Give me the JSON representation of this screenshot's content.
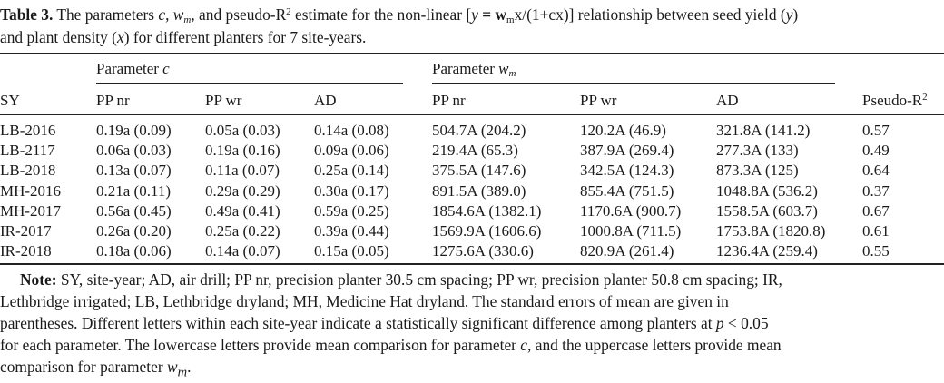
{
  "caption": {
    "label": "Table 3.",
    "text_1": " The parameters ",
    "param_c": "c",
    "text_2": ", ",
    "param_w": "w",
    "param_w_sub": "m",
    "text_3": ", and pseudo-R",
    "sup_2": "2",
    "text_4": " estimate for the non-linear [",
    "eq_y": "y",
    "eq_mid": " = w",
    "eq_sub": "m",
    "eq_rest": "x/(1+cx)] relationship between seed yield (",
    "y_var": "y",
    "text_5": ")",
    "line2_a": "and plant density (",
    "x_var": "x",
    "line2_b": ") for different planters for 7 site-years."
  },
  "table": {
    "group_c": "Parameter ",
    "group_c_sym": "c",
    "group_w": "Parameter ",
    "group_w_sym": "w",
    "group_w_sub": "m",
    "headers": [
      "SY",
      "PP nr",
      "PP wr",
      "AD",
      "PP nr",
      "PP wr",
      "AD",
      "Pseudo-R"
    ],
    "pseudo_sup": "2",
    "rows": [
      [
        "LB-2016",
        "0.19a (0.09)",
        "0.05a (0.03)",
        "0.14a (0.08)",
        "504.7A (204.2)",
        "120.2A (46.9)",
        "321.8A (141.2)",
        "0.57"
      ],
      [
        "LB-2117",
        "0.06a (0.03)",
        "0.19a (0.16)",
        "0.09a (0.06)",
        "219.4A (65.3)",
        "387.9A (269.4)",
        "277.3A (133)",
        "0.49"
      ],
      [
        "LB-2018",
        "0.13a (0.07)",
        "0.11a (0.07)",
        "0.25a (0.14)",
        "375.5A (147.6)",
        "342.5A (124.3)",
        "873.3A (125)",
        "0.64"
      ],
      [
        "MH-2016",
        "0.21a (0.11)",
        "0.29a (0.29)",
        "0.30a (0.17)",
        "891.5A (389.0)",
        "855.4A (751.5)",
        "1048.8A (536.2)",
        "0.37"
      ],
      [
        "MH-2017",
        "0.56a (0.45)",
        "0.49a (0.41)",
        "0.59a (0.25)",
        "1854.6A (1382.1)",
        "1170.6A (900.7)",
        "1558.5A (603.7)",
        "0.67"
      ],
      [
        "IR-2017",
        "0.26a (0.20)",
        "0.25a (0.22)",
        "0.39a (0.44)",
        "1569.9A (1606.6)",
        "1000.8A (711.5)",
        "1753.8A (1820.8)",
        "0.61"
      ],
      [
        "IR-2018",
        "0.18a (0.06)",
        "0.14a (0.07)",
        "0.15a (0.05)",
        "1275.6A (330.6)",
        "820.9A (261.4)",
        "1236.4A (259.4)",
        "0.55"
      ]
    ]
  },
  "note": {
    "label": "Note:",
    "l1": " SY, site-year; AD, air drill; PP nr, precision planter 30.5 cm spacing; PP wr, precision planter 50.8 cm spacing; IR,",
    "l2": "Lethbridge irrigated; LB, Lethbridge dryland; MH, Medicine Hat dryland. The standard errors of mean are given in",
    "l3": "parentheses. Different letters within each site-year indicate a statistically significant difference among planters at ",
    "p_sym": "p",
    "l3b": " < 0.05",
    "l4": "for each parameter. The lowercase letters provide mean comparison for parameter ",
    "c_sym": "c",
    "l4b": ", and the uppercase letters provide mean",
    "l5": "comparison for parameter ",
    "w_sym": "w",
    "w_sub": "m",
    "l5b": "."
  }
}
